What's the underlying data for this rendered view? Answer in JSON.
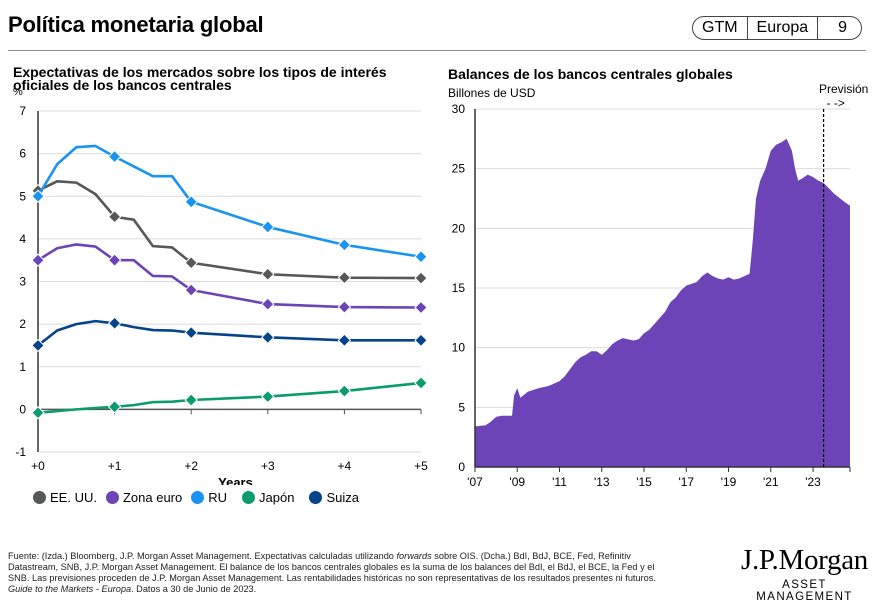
{
  "header": {
    "title": "Política monetaria global",
    "badge": [
      "GTM",
      "Europa",
      "9"
    ]
  },
  "colors": {
    "us": "#555759",
    "euro": "#6D44B8",
    "uk": "#1A94F0",
    "japan": "#0A9C6E",
    "swiss": "#05438B",
    "balance_fill": "#6D44B8"
  },
  "chart_data": [
    {
      "type": "line",
      "title": "Expectativas de los mercados sobre los tipos de interés oficiales de los bancos centrales",
      "ylabel": "%",
      "xlabel": "Years",
      "ylim": [
        -1,
        7
      ],
      "yticks": [
        -1,
        0,
        1,
        2,
        3,
        4,
        5,
        6,
        7
      ],
      "xticks": [
        "+0",
        "+1",
        "+2",
        "+3",
        "+4",
        "+5"
      ],
      "grid": true,
      "legend_position": "bottom",
      "x": [
        0,
        0.25,
        0.5,
        0.75,
        1,
        1.25,
        1.5,
        1.75,
        2,
        3,
        4,
        5
      ],
      "marker_x": [
        0,
        1,
        2,
        3,
        4,
        5
      ],
      "series": [
        {
          "name": "EE. UU.",
          "key": "us",
          "values": [
            5.13,
            5.35,
            5.32,
            5.05,
            4.52,
            4.45,
            3.83,
            3.8,
            3.44,
            3.17,
            3.09,
            3.08
          ]
        },
        {
          "name": "Zona euro",
          "key": "euro",
          "values": [
            3.5,
            3.78,
            3.87,
            3.82,
            3.5,
            3.5,
            3.13,
            3.12,
            2.8,
            2.47,
            2.4,
            2.39
          ]
        },
        {
          "name": "RU",
          "key": "uk",
          "values": [
            5.0,
            5.75,
            6.15,
            6.18,
            5.93,
            5.7,
            5.47,
            5.47,
            4.87,
            4.28,
            3.86,
            3.58
          ]
        },
        {
          "name": "Japón",
          "key": "japan",
          "values": [
            -0.08,
            -0.04,
            0.0,
            0.03,
            0.06,
            0.1,
            0.17,
            0.18,
            0.22,
            0.3,
            0.43,
            0.62
          ]
        },
        {
          "name": "Suiza",
          "key": "swiss",
          "values": [
            1.5,
            1.85,
            2.0,
            2.07,
            2.02,
            1.93,
            1.86,
            1.85,
            1.8,
            1.69,
            1.62,
            1.62
          ]
        }
      ]
    },
    {
      "type": "area",
      "title": "Balances de los bancos centrales globales",
      "ylabel": "Billones de USD",
      "xlabel": "",
      "ylim": [
        0,
        30
      ],
      "yticks": [
        0,
        5,
        10,
        15,
        20,
        25,
        30
      ],
      "xlim": [
        2007,
        2024.75
      ],
      "xticks": [
        "'07",
        "'09",
        "'11",
        "'13",
        "'15",
        "'17",
        "'19",
        "'21",
        "'23"
      ],
      "xtick_values": [
        2007,
        2009,
        2011,
        2013,
        2015,
        2017,
        2019,
        2021,
        2023
      ],
      "grid": true,
      "annotation": "Previsión",
      "forecast_start": 2023.5,
      "series": [
        {
          "name": "Balances de los bancos centrales globales",
          "x": [
            2007.0,
            2007.5,
            2007.75,
            2008.0,
            2008.25,
            2008.5,
            2008.75,
            2008.85,
            2009.0,
            2009.15,
            2009.5,
            2010.0,
            2010.5,
            2011.0,
            2011.25,
            2011.5,
            2011.75,
            2012.0,
            2012.25,
            2012.5,
            2012.75,
            2013.0,
            2013.25,
            2013.5,
            2013.75,
            2014.0,
            2014.5,
            2014.75,
            2015.0,
            2015.25,
            2015.5,
            2015.75,
            2016.0,
            2016.25,
            2016.5,
            2016.75,
            2017.0,
            2017.5,
            2017.75,
            2018.0,
            2018.25,
            2018.5,
            2018.75,
            2019.0,
            2019.25,
            2019.5,
            2019.75,
            2020.0,
            2020.15,
            2020.3,
            2020.5,
            2020.75,
            2021.0,
            2021.25,
            2021.5,
            2021.75,
            2022.0,
            2022.15,
            2022.3,
            2022.5,
            2022.75,
            2023.0,
            2023.25,
            2023.5,
            2024.0,
            2024.5,
            2024.75
          ],
          "values": [
            3.4,
            3.5,
            3.8,
            4.2,
            4.3,
            4.3,
            4.3,
            6.0,
            6.6,
            5.8,
            6.3,
            6.6,
            6.8,
            7.2,
            7.6,
            8.2,
            8.8,
            9.2,
            9.4,
            9.7,
            9.7,
            9.4,
            9.8,
            10.3,
            10.6,
            10.8,
            10.6,
            10.7,
            11.2,
            11.5,
            12.0,
            12.5,
            13.0,
            13.8,
            14.2,
            14.8,
            15.2,
            15.5,
            16.0,
            16.3,
            16.0,
            15.8,
            15.7,
            15.9,
            15.7,
            15.8,
            16.0,
            16.2,
            19.0,
            22.5,
            24.0,
            25.0,
            26.5,
            27.0,
            27.2,
            27.5,
            26.5,
            25.0,
            24.0,
            24.2,
            24.5,
            24.3,
            24.0,
            23.8,
            22.9,
            22.2,
            21.9
          ]
        }
      ]
    }
  ],
  "left_chart": {
    "title": "Expectativas de los mercados sobre los tipos de interés oficiales de los bancos centrales",
    "unit": "%",
    "xlabel": "Years",
    "legend": [
      {
        "label": "EE. UU.",
        "key": "us"
      },
      {
        "label": "Zona euro",
        "key": "euro"
      },
      {
        "label": "RU",
        "key": "uk"
      },
      {
        "label": "Japón",
        "key": "japan"
      },
      {
        "label": "Suiza",
        "key": "swiss"
      }
    ]
  },
  "right_chart": {
    "title": "Balances de los bancos centrales globales",
    "unit": "Billones de USD",
    "forecast_label": "Previsión",
    "forecast_arrow": "- ->"
  },
  "footer": {
    "line1a": "Fuente: (Izda.) Bloomberg, J.P. Morgan Asset Management. Expectativas calculadas utilizando ",
    "line1b": "forwards",
    "line1c": " sobre OIS. (Dcha.) BdI, BdJ, BCE, Fed, Refinitiv",
    "line2": "Datastream, SNB, J.P. Morgan Asset Management. El balance de los bancos centrales globales es la suma de los balances del BdI, el BdJ, el BCE, la Fed y el",
    "line3": "SNB. Las previsiones proceden de J.P. Morgan Asset Management. Las rentabilidades históricas no son representativas de los resultados presentes ni futuros.",
    "line4a": "Guide to the Markets - Europa",
    "line4b": ". Datos a 30 de Junio de 2023."
  },
  "logo": {
    "name": "J.P.Morgan",
    "sub": "ASSET MANAGEMENT"
  }
}
